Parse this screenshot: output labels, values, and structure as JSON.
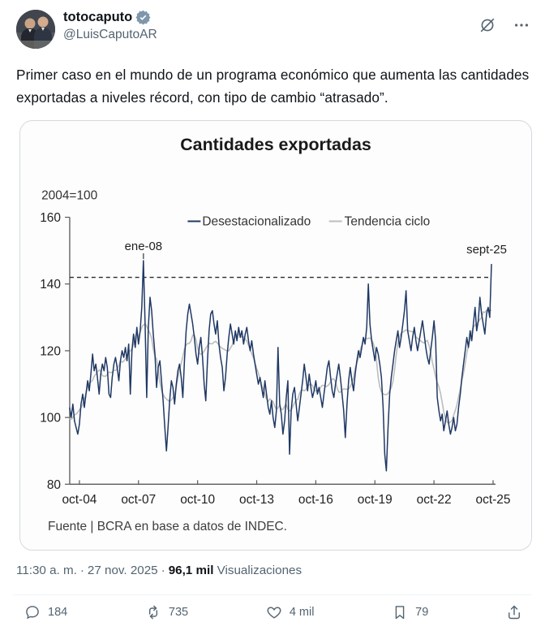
{
  "header": {
    "display_name": "totocaputo",
    "handle": "@LuisCaputoAR",
    "verified": true,
    "badge_color": "#7e97ac"
  },
  "tweet": {
    "text": "Primer caso en el mundo de un programa económico que aumenta las cantidades exportadas a niveles récord, con tipo de cambio “atrasado”."
  },
  "chart_data": {
    "type": "line",
    "title": "Cantidades exportadas",
    "unit_note": "2004=100",
    "ylim": [
      80,
      160
    ],
    "y_ticks": [
      80,
      100,
      120,
      140,
      160
    ],
    "x_tick_labels": [
      "oct-04",
      "oct-07",
      "oct-10",
      "oct-13",
      "oct-16",
      "oct-19",
      "oct-22",
      "oct-25"
    ],
    "months_before_first_tick": 6,
    "frequency": "monthly",
    "start_month": "2004-04",
    "grid": false,
    "legend_position": "top-center",
    "reference_line": {
      "value": 142,
      "style": "dashed",
      "color": "#2b2b2b"
    },
    "annotations": [
      {
        "label": "ene-08",
        "month_index": 45,
        "value": 147,
        "leader_line": true
      },
      {
        "label": "sept-25",
        "month_index": 257,
        "value": 146,
        "leader_line": false
      }
    ],
    "series": [
      {
        "name": "Desestacionalizado",
        "color": "#1f3864",
        "values": [
          103,
          100,
          104,
          99,
          97,
          95,
          98,
          104,
          107,
          103,
          107,
          111,
          108,
          113,
          119,
          114,
          116,
          112,
          107,
          113,
          116,
          114,
          118,
          115,
          107,
          106,
          112,
          116,
          118,
          115,
          111,
          117,
          120,
          118,
          121,
          117,
          122,
          107,
          120,
          125,
          121,
          127,
          122,
          126,
          133,
          147,
          128,
          106,
          127,
          136,
          132,
          125,
          119,
          109,
          115,
          117,
          111,
          105,
          97,
          90,
          97,
          105,
          111,
          109,
          104,
          110,
          114,
          116,
          112,
          106,
          117,
          126,
          131,
          134,
          131,
          128,
          124,
          119,
          116,
          121,
          124,
          118,
          110,
          105,
          117,
          126,
          131,
          132,
          128,
          125,
          129,
          122,
          118,
          115,
          108,
          112,
          119,
          124,
          128,
          125,
          122,
          126,
          123,
          127,
          124,
          126,
          122,
          125,
          127,
          123,
          120,
          123,
          119,
          116,
          113,
          110,
          112,
          109,
          106,
          111,
          107,
          103,
          101,
          105,
          100,
          97,
          102,
          121,
          104,
          101,
          95,
          99,
          106,
          111,
          89,
          102,
          107,
          109,
          104,
          99,
          103,
          107,
          111,
          116,
          112,
          108,
          113,
          109,
          106,
          108,
          111,
          107,
          109,
          106,
          103,
          107,
          111,
          115,
          117,
          112,
          108,
          106,
          110,
          113,
          116,
          112,
          107,
          102,
          94,
          104,
          111,
          115,
          111,
          108,
          113,
          117,
          120,
          118,
          121,
          124,
          122,
          127,
          140,
          128,
          123,
          120,
          117,
          121,
          119,
          116,
          112,
          103,
          89,
          84,
          97,
          107,
          112,
          116,
          120,
          123,
          126,
          121,
          124,
          128,
          132,
          138,
          126,
          123,
          120,
          124,
          127,
          123,
          120,
          123,
          126,
          129,
          125,
          121,
          118,
          116,
          120,
          124,
          129,
          123,
          106,
          102,
          99,
          101,
          96,
          99,
          102,
          98,
          95,
          97,
          100,
          96,
          98,
          103,
          107,
          112,
          116,
          120,
          124,
          121,
          126,
          123,
          128,
          133,
          126,
          129,
          136,
          131,
          128,
          125,
          131,
          133,
          130,
          146
        ]
      },
      {
        "name": "Tendencia ciclo",
        "color": "#bdbdbd",
        "derived": "centered moving average of Desestacionalizado",
        "smoothing_window": 11
      }
    ],
    "source": "Fuente | BCRA en base a datos de INDEC."
  },
  "meta": {
    "time": "11:30 a. m.",
    "date": "27 nov. 2025",
    "separator": "·",
    "views_count": "96,1 mil",
    "views_label": "Visualizaciones"
  },
  "actions": {
    "reply_count": "184",
    "repost_count": "735",
    "like_count": "4 mil",
    "bookmark_count": "79"
  }
}
